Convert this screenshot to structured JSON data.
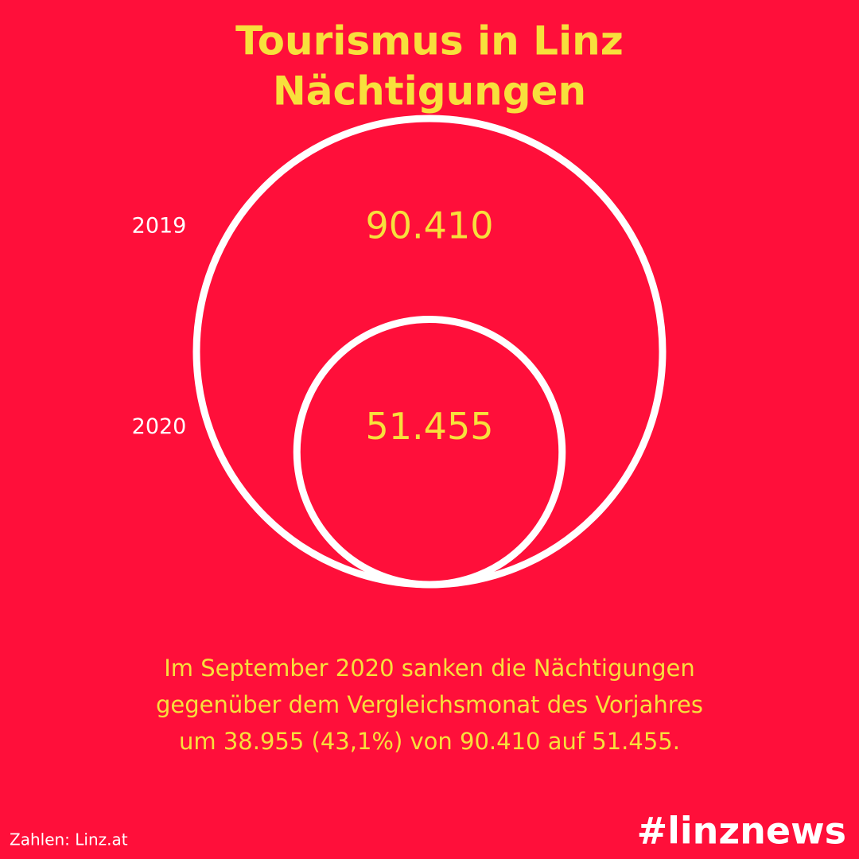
{
  "chart_data": {
    "type": "bubble",
    "title": "Tourismus in Linz",
    "subtitle": "Nächtigungen",
    "categories": [
      "2019",
      "2020"
    ],
    "values": [
      90410,
      51455
    ],
    "value_labels": [
      "90.410",
      "51.455"
    ],
    "color": "#ffffff",
    "label_color": "#f7e03c",
    "annotation": [
      "Im September 2020 sanken die Nächtigungen",
      "gegenüber dem Vergleichsmonat des Vorjahres",
      "um 38.955 (43,1%) von 90.410 auf 51.455."
    ],
    "source": "Zahlen: Linz.at",
    "hashtag": "#linznews"
  }
}
